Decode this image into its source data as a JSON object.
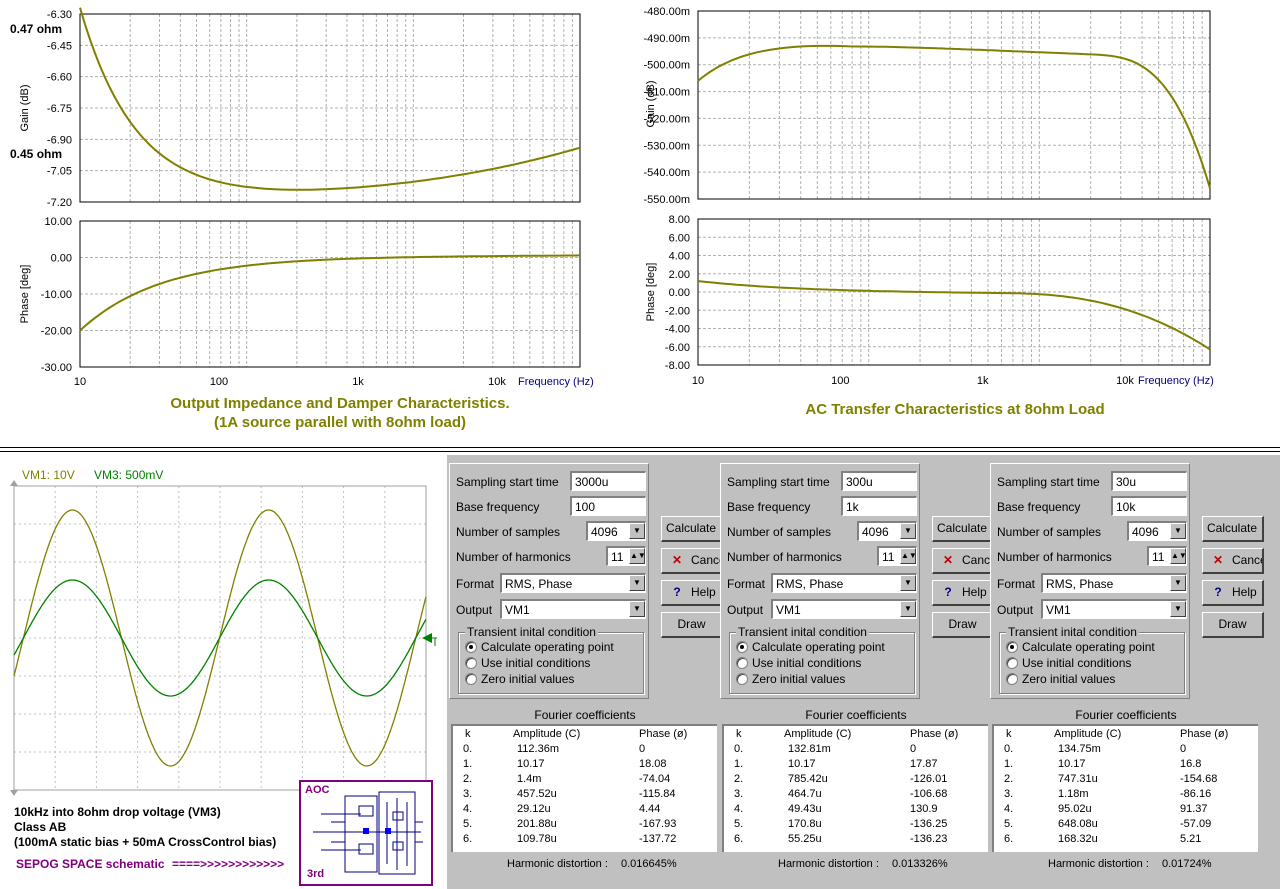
{
  "colors": {
    "olive": "#808000",
    "green": "#008000",
    "grid": "#c0c0c0",
    "panel": "#c0c0c0",
    "purple": "#800080"
  },
  "impedance_plot": {
    "caption_line1": "Output Impedance and Damper Characteristics.",
    "caption_line2": "(1A source parallel with 8ohm load)",
    "gain_ylabel": "Gain (dB)",
    "phase_ylabel": "Phase [deg]",
    "xlabel": "Frequency (Hz)",
    "gain_ticks": [
      "-6.30",
      "-6.45",
      "-6.60",
      "-6.75",
      "-6.90",
      "-7.05",
      "-7.20"
    ],
    "phase_ticks": [
      "10.00",
      "0.00",
      "-10.00",
      "-20.00",
      "-30.00"
    ],
    "x_ticks": [
      "10",
      "100",
      "1k",
      "10k"
    ],
    "marker_top": "0.47 ohm",
    "marker_bottom": "0.45 ohm"
  },
  "transfer_plot": {
    "caption": "AC Transfer Characteristics at 8ohm Load",
    "gain_ylabel": "Gain (dB)",
    "phase_ylabel": "Phase [deg]",
    "xlabel": "Frequency (Hz)",
    "gain_ticks": [
      "-480.00m",
      "-490.00m",
      "-500.00m",
      "-510.00m",
      "-520.00m",
      "-530.00m",
      "-540.00m",
      "-550.00m"
    ],
    "phase_ticks": [
      "8.00",
      "6.00",
      "4.00",
      "2.00",
      "0.00",
      "-2.00",
      "-4.00",
      "-6.00",
      "-8.00"
    ],
    "x_ticks": [
      "10",
      "100",
      "1k",
      "10k"
    ]
  },
  "scope": {
    "vm1_label": "VM1: 10V",
    "vm3_label": "VM3: 500mV",
    "desc_line1": "10kHz into 8ohm drop voltage (VM3)",
    "desc_line2": "Class AB",
    "desc_line3": "(100mA static bias + 50mA CrossControl bias)",
    "sepog_label": "SEPOG SPACE schematic",
    "arrow_text": "====>>>>>>>>>>>>",
    "thumb_top": "AOC",
    "thumb_bottom": "3rd"
  },
  "fourier_labels": {
    "sampling_start": "Sampling start time",
    "base_freq": "Base frequency",
    "num_samples": "Number of samples",
    "num_harmonics": "Number of harmonics",
    "format": "Format",
    "output": "Output",
    "transient_group": "Transient inital condition",
    "radio1": "Calculate operating point",
    "radio2": "Use initial conditions",
    "radio3": "Zero initial values",
    "btn_calc": "Calculate",
    "btn_cancel": "Cancel",
    "btn_help": "Help",
    "btn_draw": "Draw",
    "coef_title": "Fourier coefficients",
    "col_k": "k",
    "col_amp": "Amplitude (C)",
    "col_phase": "Phase (ø)",
    "thd_label": "Harmonic distortion :"
  },
  "fourier_panels": [
    {
      "sampling_start": "3000u",
      "base_freq": "100",
      "num_samples": "4096",
      "num_harmonics": "11",
      "format": "RMS, Phase",
      "output": "VM1",
      "thd": "0.016645%",
      "rows": [
        {
          "k": "0.",
          "amp": "112.36m",
          "phase": "0"
        },
        {
          "k": "1.",
          "amp": "10.17",
          "phase": "18.08"
        },
        {
          "k": "2.",
          "amp": "1.4m",
          "phase": "-74.04"
        },
        {
          "k": "3.",
          "amp": "457.52u",
          "phase": "-115.84"
        },
        {
          "k": "4.",
          "amp": "29.12u",
          "phase": "4.44"
        },
        {
          "k": "5.",
          "amp": "201.88u",
          "phase": "-167.93"
        },
        {
          "k": "6.",
          "amp": "109.78u",
          "phase": "-137.72"
        }
      ]
    },
    {
      "sampling_start": "300u",
      "base_freq": "1k",
      "num_samples": "4096",
      "num_harmonics": "11",
      "format": "RMS, Phase",
      "output": "VM1",
      "thd": "0.013326%",
      "rows": [
        {
          "k": "0.",
          "amp": "132.81m",
          "phase": "0"
        },
        {
          "k": "1.",
          "amp": "10.17",
          "phase": "17.87"
        },
        {
          "k": "2.",
          "amp": "785.42u",
          "phase": "-126.01"
        },
        {
          "k": "3.",
          "amp": "464.7u",
          "phase": "-106.68"
        },
        {
          "k": "4.",
          "amp": "49.43u",
          "phase": "130.9"
        },
        {
          "k": "5.",
          "amp": "170.8u",
          "phase": "-136.25"
        },
        {
          "k": "6.",
          "amp": "55.25u",
          "phase": "-136.23"
        }
      ]
    },
    {
      "sampling_start": "30u",
      "base_freq": "10k",
      "num_samples": "4096",
      "num_harmonics": "11",
      "format": "RMS, Phase",
      "output": "VM1",
      "thd": "0.01724%",
      "rows": [
        {
          "k": "0.",
          "amp": "134.75m",
          "phase": "0"
        },
        {
          "k": "1.",
          "amp": "10.17",
          "phase": "16.8"
        },
        {
          "k": "2.",
          "amp": "747.31u",
          "phase": "-154.68"
        },
        {
          "k": "3.",
          "amp": "1.18m",
          "phase": "-86.16"
        },
        {
          "k": "4.",
          "amp": "95.02u",
          "phase": "91.37"
        },
        {
          "k": "5.",
          "amp": "648.08u",
          "phase": "-57.09"
        },
        {
          "k": "6.",
          "amp": "168.32u",
          "phase": "5.21"
        }
      ]
    }
  ]
}
